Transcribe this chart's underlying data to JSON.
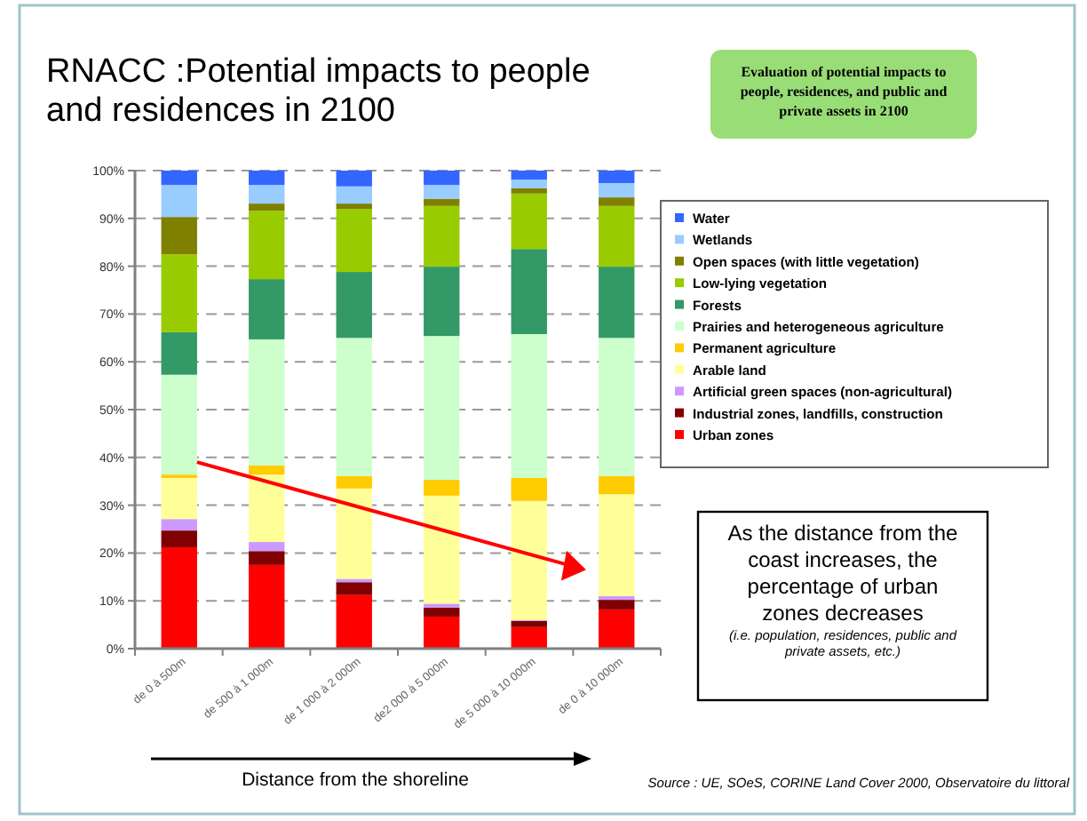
{
  "chart_data": {
    "type": "bar",
    "stacked": true,
    "title": "RNACC :Potential impacts to people and residences in 2100",
    "subtitle": "Evaluation of potential impacts to people, residences, and public and private assets in 2100",
    "xlabel": "Distance from the shoreline",
    "categories": [
      "de 0 à 500m",
      "de 500 à 1 000m",
      "de 1 000 à 2 000m",
      "de2 000 à 5 000m",
      "de 5 000 à 10 000m",
      "de 0 à 10 000m"
    ],
    "series": [
      {
        "name": "Urban zones",
        "color": "#ff0000",
        "values": [
          21.2,
          17.5,
          11.2,
          6.7,
          4.5,
          8.2
        ]
      },
      {
        "name": "Industrial zones, landfills, construction",
        "color": "#800000",
        "values": [
          3.5,
          2.9,
          2.7,
          1.9,
          1.3,
          2.0
        ]
      },
      {
        "name": "Artificial green spaces (non-agricultural)",
        "color": "#cc99ff",
        "values": [
          2.4,
          1.9,
          0.7,
          0.8,
          0.2,
          0.8
        ]
      },
      {
        "name": "Arable land",
        "color": "#ffff99",
        "values": [
          8.6,
          14.1,
          18.9,
          22.6,
          24.9,
          21.3
        ]
      },
      {
        "name": "Permanent agriculture",
        "color": "#ffcc00",
        "values": [
          0.7,
          1.9,
          2.6,
          3.3,
          4.8,
          3.8
        ]
      },
      {
        "name": "Prairies and heterogeneous agriculture",
        "color": "#ccffcc",
        "values": [
          20.9,
          26.4,
          28.9,
          30.1,
          30.1,
          28.9
        ]
      },
      {
        "name": "Forests",
        "color": "#339966",
        "values": [
          8.9,
          12.6,
          13.8,
          14.5,
          17.8,
          14.9
        ]
      },
      {
        "name": "Low-lying vegetation",
        "color": "#99cc00",
        "values": [
          16.3,
          14.3,
          13.2,
          12.7,
          11.6,
          12.7
        ]
      },
      {
        "name": "Open spaces (with little vegetation)",
        "color": "#808000",
        "values": [
          7.8,
          1.5,
          1.1,
          1.5,
          1.1,
          1.8
        ]
      },
      {
        "name": "Wetlands",
        "color": "#99ccff",
        "values": [
          6.7,
          3.9,
          3.6,
          2.9,
          1.8,
          3.0
        ]
      },
      {
        "name": "Water",
        "color": "#3366ff",
        "values": [
          3.0,
          3.0,
          3.3,
          3.0,
          1.9,
          2.6
        ]
      }
    ],
    "ylim": [
      0,
      100
    ],
    "yticks": [
      {
        "value": 0,
        "label": "0%"
      },
      {
        "value": 10,
        "label": "10%"
      },
      {
        "value": 20,
        "label": "20%"
      },
      {
        "value": 30,
        "label": "30%"
      },
      {
        "value": 40,
        "label": "40%"
      },
      {
        "value": 50,
        "label": "50%"
      },
      {
        "value": 60,
        "label": "60%"
      },
      {
        "value": 70,
        "label": "70%"
      },
      {
        "value": 80,
        "label": "80%"
      },
      {
        "value": 90,
        "label": "90%"
      },
      {
        "value": 100,
        "label": "100%"
      }
    ],
    "grid": "y",
    "line_style": "dashed",
    "legend": "right",
    "annotations": [
      "As the distance from the coast increases, the percentage of urban zones decreases",
      "(i.e. population, residences, public and private assets, etc.)",
      "Source : UE, SOeS, CORINE Land Cover 2000, Observatoire du littoral"
    ]
  }
}
